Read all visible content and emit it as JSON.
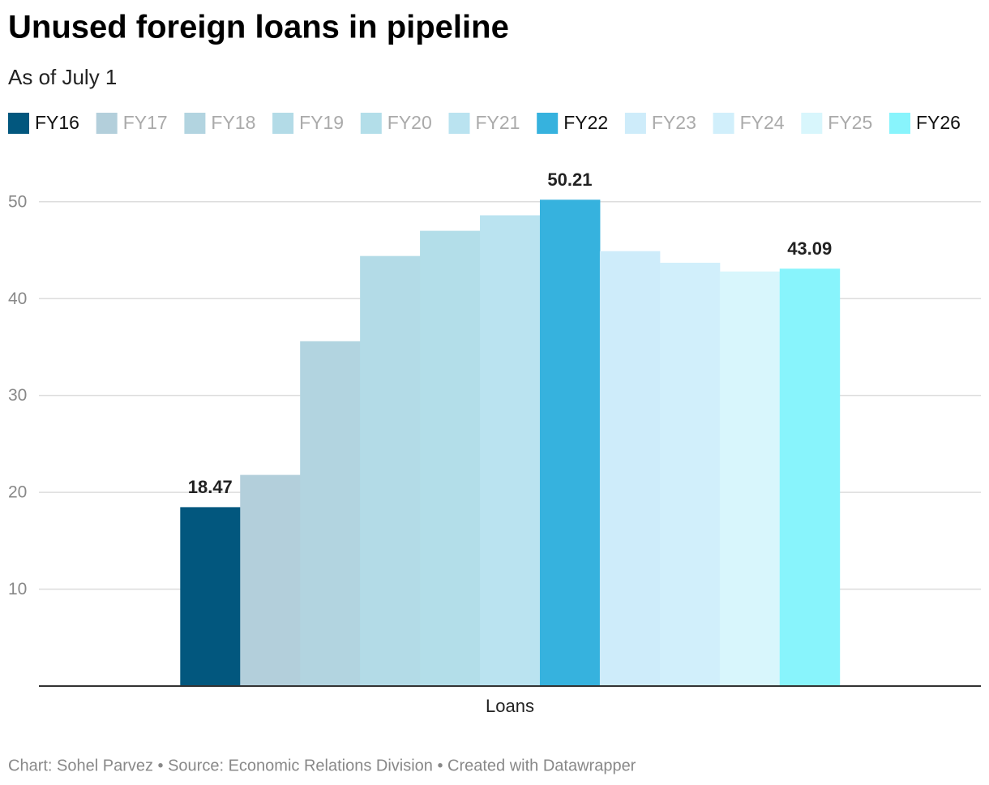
{
  "chart_data": {
    "type": "bar",
    "title": "Unused foreign loans in pipeline",
    "subtitle": "As of July 1",
    "categories": [
      "Loans"
    ],
    "series": [
      {
        "name": "FY16",
        "color": "#02577e",
        "values": [
          18.47
        ],
        "highlight": true
      },
      {
        "name": "FY17",
        "color": "#b3cfdb",
        "values": [
          21.8
        ],
        "highlight": false
      },
      {
        "name": "FY18",
        "color": "#b2d4e0",
        "values": [
          35.6
        ],
        "highlight": false
      },
      {
        "name": "FY19",
        "color": "#b3dbe7",
        "values": [
          44.4
        ],
        "highlight": false
      },
      {
        "name": "FY20",
        "color": "#b3dee9",
        "values": [
          47.0
        ],
        "highlight": false
      },
      {
        "name": "FY21",
        "color": "#bae3f0",
        "values": [
          48.6
        ],
        "highlight": false
      },
      {
        "name": "FY22",
        "color": "#36b2de",
        "values": [
          50.21
        ],
        "highlight": true
      },
      {
        "name": "FY23",
        "color": "#ceecfa",
        "values": [
          44.9
        ],
        "highlight": false
      },
      {
        "name": "FY24",
        "color": "#d1effb",
        "values": [
          43.7
        ],
        "highlight": false
      },
      {
        "name": "FY25",
        "color": "#d8f6fc",
        "values": [
          42.8
        ],
        "highlight": false
      },
      {
        "name": "FY26",
        "color": "#88f4fc",
        "values": [
          43.09
        ],
        "highlight": true
      }
    ],
    "ylim": [
      0,
      54
    ],
    "yticks": [
      10,
      20,
      30,
      40,
      50
    ],
    "grid": true,
    "source": "Chart: Sohel Parvez • Source: Economic Relations Division • Created with Datawrapper"
  }
}
